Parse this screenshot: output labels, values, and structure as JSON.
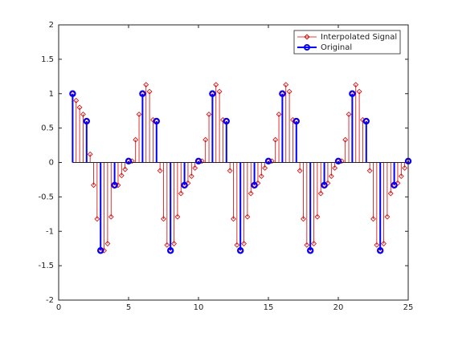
{
  "chart_data": {
    "type": "stem",
    "series": [
      {
        "name": "Interpolated Signal",
        "color": "#d40000",
        "x": [
          1,
          1.25,
          1.5,
          1.75,
          2,
          2.25,
          2.5,
          2.75,
          3,
          3.25,
          3.5,
          3.75,
          4,
          4.25,
          4.5,
          4.75,
          5,
          5.25,
          5.5,
          5.75,
          6,
          6.25,
          6.5,
          6.75,
          7,
          7.25,
          7.5,
          7.75,
          8,
          8.25,
          8.5,
          8.75,
          9,
          9.25,
          9.5,
          9.75,
          10,
          10.25,
          10.5,
          10.75,
          11,
          11.25,
          11.5,
          11.75,
          12,
          12.25,
          12.5,
          12.75,
          13,
          13.25,
          13.5,
          13.75,
          14,
          14.25,
          14.5,
          14.75,
          15,
          15.25,
          15.5,
          15.75,
          16,
          16.25,
          16.5,
          16.75,
          17,
          17.25,
          17.5,
          17.75,
          18,
          18.25,
          18.5,
          18.75,
          19,
          19.25,
          19.5,
          19.75,
          20,
          20.25,
          20.5,
          20.75,
          21,
          21.25,
          21.5,
          21.75,
          22,
          22.25,
          22.5,
          22.75,
          23,
          23.25,
          23.5,
          23.75,
          24,
          24.25,
          24.5,
          24.75,
          25
        ],
        "values": [
          1,
          0.9,
          0.8,
          0.7,
          0.6,
          0.12,
          -0.33,
          -0.82,
          -1.28,
          -1.28,
          -1.18,
          -0.79,
          -0.33,
          -0.33,
          -0.19,
          -0.1,
          0.02,
          0.02,
          0.33,
          0.7,
          1,
          1.13,
          1.03,
          0.62,
          0.6,
          -0.12,
          -0.82,
          -1.2,
          -1.28,
          -1.18,
          -0.79,
          -0.45,
          -0.33,
          -0.3,
          -0.2,
          -0.08,
          0.02,
          0.02,
          0.33,
          0.7,
          1,
          1.13,
          1.03,
          0.62,
          0.6,
          -0.12,
          -0.82,
          -1.2,
          -1.28,
          -1.18,
          -0.79,
          -0.45,
          -0.33,
          -0.3,
          -0.2,
          -0.08,
          0.02,
          0.02,
          0.33,
          0.7,
          1,
          1.13,
          1.03,
          0.62,
          0.6,
          -0.12,
          -0.82,
          -1.2,
          -1.28,
          -1.18,
          -0.79,
          -0.45,
          -0.33,
          -0.3,
          -0.2,
          -0.08,
          0.02,
          0.02,
          0.33,
          0.7,
          1,
          1.13,
          1.03,
          0.62,
          0.6,
          -0.12,
          -0.82,
          -1.2,
          -1.28,
          -1.18,
          -0.79,
          -0.45,
          -0.33,
          -0.3,
          -0.2,
          -0.08,
          0.02
        ]
      },
      {
        "name": "Original",
        "color": "#0000ff",
        "x": [
          1,
          2,
          3,
          4,
          5,
          6,
          7,
          8,
          9,
          10,
          11,
          12,
          13,
          14,
          15,
          16,
          17,
          18,
          19,
          20,
          21,
          22,
          23,
          24,
          25
        ],
        "values": [
          1,
          0.6,
          -1.28,
          -0.33,
          0.02,
          1,
          0.6,
          -1.28,
          -0.33,
          0.02,
          1,
          0.6,
          -1.28,
          -0.33,
          0.02,
          1,
          0.6,
          -1.28,
          -0.33,
          0.02,
          1,
          0.6,
          -1.28,
          -0.33,
          0.02
        ]
      }
    ],
    "xlim": [
      0,
      25
    ],
    "xticks": [
      0,
      5,
      10,
      15,
      20,
      25
    ],
    "ylim": [
      -2,
      2
    ],
    "yticks": [
      -2,
      -1.5,
      -1,
      -0.5,
      0,
      0.5,
      1,
      1.5,
      2
    ],
    "legend": "northeast"
  }
}
